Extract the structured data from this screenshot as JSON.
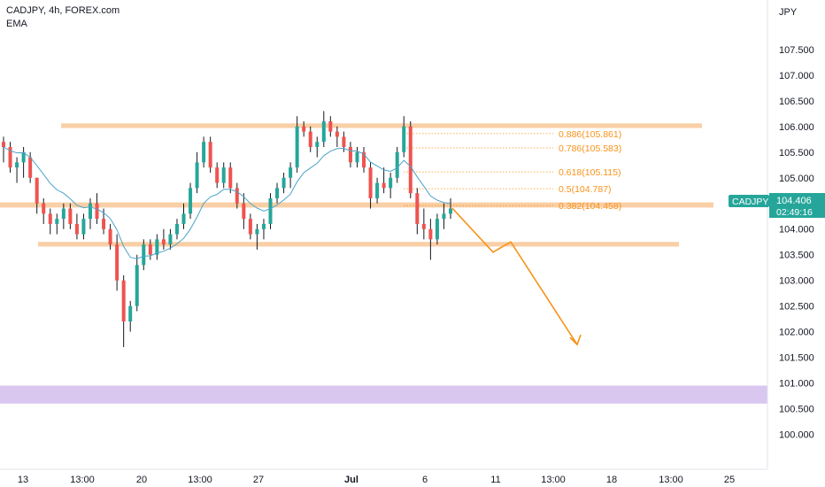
{
  "header": {
    "symbol_line": "CADJPY, 4h, FOREX.com",
    "indicator": "EMA"
  },
  "axis": {
    "currency": "JPY"
  },
  "colors": {
    "bullish": "#26a69a",
    "bearish": "#ef5350",
    "wick": "#131722",
    "ema": "#4aa3c9",
    "zone": "#f9cfa6",
    "purple_zone": "#d9c7ef",
    "fib": "#f7931a",
    "arrow": "#f7931a",
    "badge": "#26a69a"
  },
  "price_label": {
    "symbol": "CADJPY",
    "price": "104.406",
    "countdown": "02:49:16"
  },
  "chart_data": {
    "type": "candlestick",
    "symbol": "CADJPY",
    "timeframe": "4h",
    "source": "FOREX.com",
    "ylim": [
      99.63,
      108.05
    ],
    "y_ticks": [
      "107.500",
      "107.000",
      "106.500",
      "106.000",
      "105.500",
      "105.000",
      "104.500",
      "104.000",
      "103.500",
      "103.000",
      "102.500",
      "102.000",
      "101.500",
      "101.000",
      "100.500",
      "100.000"
    ],
    "x_ticks": [
      "13",
      "13:00",
      "20",
      "13:00",
      "27",
      "Jul",
      "6",
      "11",
      "13:00",
      "18",
      "13:00",
      "25"
    ],
    "candles": [
      [
        105.7,
        105.8,
        105.3,
        105.6
      ],
      [
        105.6,
        105.7,
        105.1,
        105.2
      ],
      [
        105.2,
        105.4,
        104.9,
        105.3
      ],
      [
        105.3,
        105.6,
        105.0,
        105.5
      ],
      [
        105.4,
        105.5,
        104.9,
        105.0
      ],
      [
        105.0,
        105.0,
        104.3,
        104.5
      ],
      [
        104.5,
        104.6,
        104.1,
        104.3
      ],
      [
        104.3,
        104.4,
        103.9,
        104.1
      ],
      [
        104.1,
        104.3,
        103.9,
        104.2
      ],
      [
        104.2,
        104.5,
        104.0,
        104.4
      ],
      [
        104.4,
        104.5,
        104.0,
        104.1
      ],
      [
        104.1,
        104.3,
        103.8,
        103.9
      ],
      [
        103.9,
        104.3,
        103.8,
        104.2
      ],
      [
        104.2,
        104.6,
        104.0,
        104.5
      ],
      [
        104.5,
        104.7,
        104.1,
        104.2
      ],
      [
        104.2,
        104.4,
        103.9,
        104.0
      ],
      [
        104.0,
        104.1,
        103.6,
        103.7
      ],
      [
        103.7,
        103.9,
        102.8,
        103.0
      ],
      [
        103.0,
        103.1,
        101.7,
        102.2
      ],
      [
        102.2,
        102.6,
        102.0,
        102.5
      ],
      [
        102.5,
        103.5,
        102.4,
        103.3
      ],
      [
        103.3,
        103.8,
        103.2,
        103.7
      ],
      [
        103.7,
        103.8,
        103.4,
        103.5
      ],
      [
        103.5,
        103.9,
        103.4,
        103.8
      ],
      [
        103.8,
        104.0,
        103.6,
        103.7
      ],
      [
        103.7,
        104.0,
        103.6,
        103.9
      ],
      [
        103.9,
        104.2,
        103.8,
        104.1
      ],
      [
        104.1,
        104.5,
        104.0,
        104.3
      ],
      [
        104.3,
        104.9,
        104.2,
        104.8
      ],
      [
        104.8,
        105.5,
        104.7,
        105.3
      ],
      [
        105.3,
        105.8,
        105.2,
        105.7
      ],
      [
        105.7,
        105.8,
        105.1,
        105.2
      ],
      [
        105.2,
        105.3,
        104.8,
        104.9
      ],
      [
        104.9,
        105.3,
        104.8,
        105.2
      ],
      [
        105.2,
        105.3,
        104.7,
        104.8
      ],
      [
        104.8,
        104.9,
        104.4,
        104.5
      ],
      [
        104.5,
        104.7,
        104.0,
        104.2
      ],
      [
        104.2,
        104.3,
        103.8,
        103.9
      ],
      [
        103.9,
        104.1,
        103.6,
        104.0
      ],
      [
        104.0,
        104.2,
        103.8,
        104.1
      ],
      [
        104.1,
        104.7,
        104.0,
        104.6
      ],
      [
        104.6,
        104.9,
        104.5,
        104.8
      ],
      [
        104.8,
        105.1,
        104.7,
        105.0
      ],
      [
        105.0,
        105.3,
        104.8,
        105.2
      ],
      [
        105.2,
        106.2,
        105.1,
        106.0
      ],
      [
        106.0,
        106.1,
        105.8,
        105.9
      ],
      [
        105.9,
        106.0,
        105.5,
        105.6
      ],
      [
        105.6,
        105.8,
        105.4,
        105.7
      ],
      [
        105.7,
        106.3,
        105.6,
        106.1
      ],
      [
        106.1,
        106.2,
        105.8,
        105.9
      ],
      [
        105.9,
        106.0,
        105.6,
        105.8
      ],
      [
        105.8,
        105.9,
        105.5,
        105.6
      ],
      [
        105.6,
        105.7,
        105.2,
        105.3
      ],
      [
        105.3,
        105.6,
        105.2,
        105.5
      ],
      [
        105.5,
        105.6,
        105.1,
        105.2
      ],
      [
        105.2,
        105.3,
        104.4,
        104.6
      ],
      [
        104.6,
        105.0,
        104.5,
        104.9
      ],
      [
        104.9,
        105.2,
        104.7,
        104.8
      ],
      [
        104.8,
        105.1,
        104.6,
        105.0
      ],
      [
        105.0,
        105.6,
        104.9,
        105.5
      ],
      [
        105.5,
        106.2,
        105.4,
        106.0
      ],
      [
        106.0,
        106.1,
        104.6,
        104.7
      ],
      [
        104.7,
        104.8,
        103.9,
        104.1
      ],
      [
        104.1,
        104.4,
        103.8,
        104.0
      ],
      [
        104.0,
        104.2,
        103.4,
        103.8
      ],
      [
        103.8,
        104.3,
        103.7,
        104.2
      ],
      [
        104.2,
        104.5,
        104.0,
        104.3
      ],
      [
        104.3,
        104.6,
        104.2,
        104.4
      ]
    ],
    "ema_period_note": "",
    "zones": [
      {
        "name": "top-zone",
        "from": 105.97,
        "to": 106.06
      },
      {
        "name": "middle-zone",
        "from": 104.42,
        "to": 104.52
      },
      {
        "name": "bottom-zone",
        "from": 103.66,
        "to": 103.75
      },
      {
        "name": "purple-zone",
        "from": 100.6,
        "to": 100.95
      }
    ],
    "fib_levels": [
      {
        "label": "0.886(105.861)",
        "value": 105.861
      },
      {
        "label": "0.786(105.583)",
        "value": 105.583
      },
      {
        "label": "0.618(105.115)",
        "value": 105.115
      },
      {
        "label": "0.5(104.787)",
        "value": 104.787
      },
      {
        "label": "0.382(104.458)",
        "value": 104.458
      }
    ],
    "projection_path": [
      104.406,
      103.55,
      103.75,
      101.75
    ],
    "last_price": 104.406
  }
}
